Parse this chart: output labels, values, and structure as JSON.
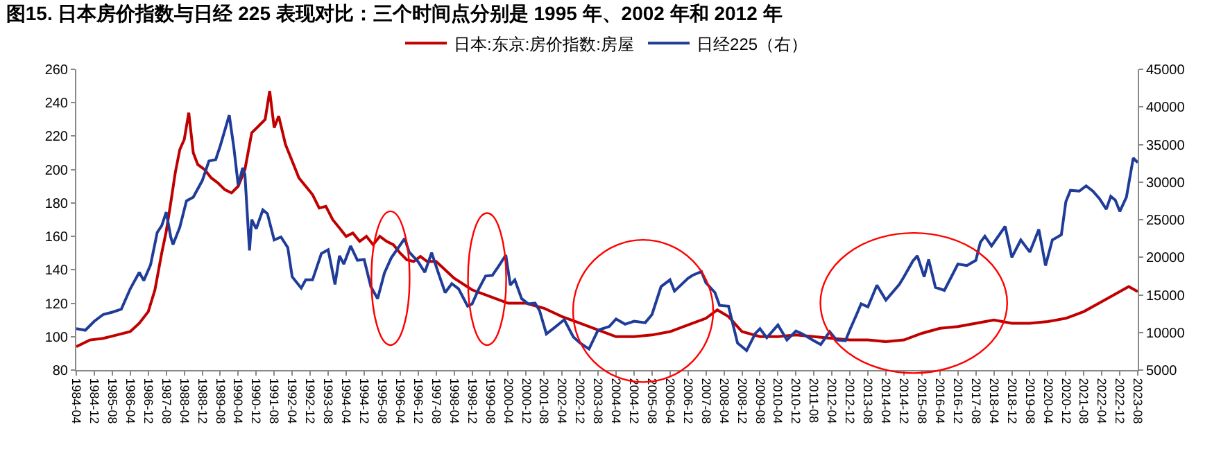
{
  "chart_data": {
    "type": "line",
    "title": "图15. 日本房价指数与日经 225 表现对比：三个时间点分别是 1995 年、2002 年和 2012 年",
    "series": [
      {
        "name": "日本:东京:房价指数:房屋",
        "color": "#c00000",
        "x": [
          "1984-04",
          "1984-10",
          "1985-04",
          "1985-10",
          "1986-04",
          "1986-08",
          "1986-12",
          "1987-03",
          "1987-06",
          "1987-08",
          "1987-10",
          "1987-12",
          "1988-02",
          "1988-04",
          "1988-06",
          "1988-08",
          "1988-10",
          "1989-01",
          "1989-04",
          "1989-07",
          "1989-10",
          "1990-01",
          "1990-04",
          "1990-07",
          "1990-10",
          "1991-01",
          "1991-04",
          "1991-06",
          "1991-08",
          "1991-10",
          "1992-01",
          "1992-04",
          "1992-07",
          "1992-10",
          "1993-01",
          "1993-04",
          "1993-07",
          "1993-10",
          "1994-01",
          "1994-04",
          "1994-07",
          "1994-10",
          "1995-01",
          "1995-04",
          "1995-07",
          "1995-10",
          "1996-01",
          "1996-04",
          "1996-07",
          "1996-10",
          "1997-01",
          "1997-04",
          "1997-08",
          "1998-04",
          "1998-12",
          "1999-08",
          "2000-04",
          "2000-12",
          "2001-08",
          "2002-04",
          "2002-12",
          "2003-08",
          "2004-04",
          "2004-12",
          "2005-08",
          "2006-04",
          "2006-12",
          "2007-08",
          "2008-01",
          "2008-06",
          "2008-12",
          "2009-08",
          "2010-04",
          "2010-12",
          "2011-08",
          "2012-04",
          "2012-12",
          "2013-08",
          "2014-04",
          "2014-12",
          "2015-08",
          "2016-04",
          "2016-12",
          "2017-08",
          "2018-04",
          "2018-12",
          "2019-08",
          "2020-04",
          "2020-12",
          "2021-08",
          "2022-04",
          "2022-12",
          "2023-04",
          "2023-08"
        ],
        "values": [
          94,
          98,
          99,
          101,
          103,
          108,
          115,
          128,
          150,
          163,
          180,
          198,
          212,
          218,
          234,
          210,
          203,
          200,
          195,
          192,
          188,
          186,
          190,
          200,
          222,
          226,
          230,
          247,
          225,
          232,
          215,
          205,
          195,
          190,
          185,
          177,
          178,
          170,
          165,
          160,
          162,
          157,
          160,
          155,
          160,
          157,
          155,
          150,
          146,
          145,
          148,
          145,
          145,
          135,
          128,
          124,
          120,
          120,
          117,
          112,
          108,
          104,
          100,
          100,
          101,
          103,
          107,
          111,
          116,
          112,
          103,
          100,
          100,
          101,
          100,
          99,
          98,
          98,
          97,
          98,
          102,
          105,
          106,
          108,
          110,
          108,
          108,
          109,
          111,
          115,
          121,
          127,
          130,
          127
        ]
      },
      {
        "name": "日经225（右）",
        "color": "#1f3c99",
        "axis": "y2",
        "x": [
          "1984-04",
          "1984-08",
          "1984-12",
          "1985-04",
          "1985-08",
          "1985-12",
          "1986-04",
          "1986-08",
          "1986-10",
          "1987-01",
          "1987-04",
          "1987-06",
          "1987-08",
          "1987-10",
          "1987-11",
          "1988-02",
          "1988-05",
          "1988-08",
          "1988-12",
          "1989-03",
          "1989-06",
          "1989-08",
          "1989-12",
          "1990-02",
          "1990-04",
          "1990-06",
          "1990-07",
          "1990-09",
          "1990-10",
          "1990-12",
          "1991-03",
          "1991-05",
          "1991-08",
          "1991-11",
          "1992-02",
          "1992-04",
          "1992-08",
          "1992-10",
          "1993-01",
          "1993-05",
          "1993-08",
          "1993-11",
          "1994-01",
          "1994-03",
          "1994-06",
          "1994-09",
          "1994-12",
          "1995-03",
          "1995-06",
          "1995-09",
          "1995-12",
          "1996-06",
          "1996-08",
          "1996-12",
          "1997-03",
          "1997-06",
          "1997-09",
          "1997-12",
          "1998-03",
          "1998-06",
          "1998-10",
          "1998-12",
          "1999-03",
          "1999-06",
          "1999-09",
          "1999-12",
          "2000-03",
          "2000-05",
          "2000-07",
          "2000-10",
          "2001-01",
          "2001-04",
          "2001-06",
          "2001-09",
          "2001-12",
          "2002-05",
          "2002-09",
          "2002-12",
          "2003-04",
          "2003-08",
          "2004-01",
          "2004-04",
          "2004-08",
          "2004-12",
          "2005-05",
          "2005-08",
          "2005-12",
          "2006-04",
          "2006-06",
          "2006-12",
          "2007-02",
          "2007-06",
          "2007-08",
          "2007-12",
          "2008-02",
          "2008-06",
          "2008-10",
          "2009-02",
          "2009-06",
          "2009-08",
          "2009-11",
          "2010-04",
          "2010-08",
          "2010-12",
          "2011-03",
          "2011-08",
          "2011-11",
          "2012-03",
          "2012-06",
          "2012-10",
          "2012-12",
          "2013-03",
          "2013-05",
          "2013-08",
          "2013-12",
          "2014-04",
          "2014-10",
          "2014-12",
          "2015-04",
          "2015-06",
          "2015-09",
          "2015-11",
          "2016-02",
          "2016-06",
          "2016-12",
          "2017-04",
          "2017-08",
          "2017-10",
          "2017-12",
          "2018-03",
          "2018-09",
          "2018-12",
          "2019-04",
          "2019-08",
          "2019-12",
          "2020-03",
          "2020-06",
          "2020-10",
          "2020-12",
          "2021-02",
          "2021-06",
          "2021-09",
          "2021-12",
          "2022-03",
          "2022-06",
          "2022-08",
          "2022-10",
          "2022-12",
          "2023-03",
          "2023-06",
          "2023-08"
        ],
        "values": [
          10500,
          10300,
          11500,
          12400,
          12700,
          13100,
          15800,
          18000,
          16900,
          19000,
          23300,
          24200,
          26000,
          22700,
          21700,
          24000,
          27500,
          28000,
          30200,
          32800,
          33000,
          34800,
          38900,
          34600,
          29600,
          31900,
          31000,
          20900,
          25000,
          23800,
          26300,
          25800,
          22300,
          22700,
          21300,
          17400,
          15900,
          17000,
          17000,
          20500,
          21000,
          16400,
          20200,
          19100,
          21500,
          19600,
          19700,
          16100,
          14500,
          17900,
          19900,
          22500,
          20700,
          19400,
          18000,
          20600,
          17900,
          15300,
          16500,
          15800,
          13500,
          13800,
          15800,
          17500,
          17600,
          18900,
          20300,
          16300,
          17000,
          14500,
          13800,
          13900,
          12900,
          9800,
          10500,
          11700,
          9400,
          8600,
          7800,
          10300,
          10800,
          11800,
          11100,
          11500,
          11300,
          12400,
          16100,
          17000,
          15500,
          17200,
          17600,
          18100,
          16600,
          15300,
          13600,
          13500,
          8600,
          7600,
          9900,
          10500,
          9300,
          11000,
          9000,
          10200,
          9800,
          8900,
          8400,
          10100,
          9000,
          8900,
          10400,
          12400,
          13800,
          13400,
          16300,
          14300,
          16400,
          17400,
          19500,
          20200,
          17400,
          19700,
          16000,
          15600,
          19100,
          18900,
          19600,
          22000,
          22800,
          21500,
          24100,
          20000,
          22300,
          20700,
          23700,
          18900,
          22300,
          23000,
          27400,
          28900,
          28800,
          29500,
          28800,
          27800,
          26400,
          28100,
          27600,
          26100,
          28000,
          33200,
          32600
        ]
      }
    ],
    "xlim": [
      "1984-04",
      "2023-08"
    ],
    "xticks": [
      "1984-04",
      "1984-12",
      "1985-08",
      "1986-04",
      "1986-12",
      "1987-08",
      "1988-04",
      "1988-12",
      "1989-08",
      "1990-04",
      "1990-12",
      "1991-08",
      "1992-04",
      "1992-12",
      "1993-08",
      "1994-04",
      "1994-12",
      "1995-08",
      "1996-04",
      "1996-12",
      "1997-08",
      "1998-04",
      "1998-12",
      "1999-08",
      "2000-04",
      "2000-12",
      "2001-08",
      "2002-04",
      "2002-12",
      "2003-08",
      "2004-04",
      "2004-12",
      "2005-08",
      "2006-04",
      "2006-12",
      "2007-08",
      "2008-04",
      "2008-12",
      "2009-08",
      "2010-04",
      "2010-12",
      "2011-08",
      "2012-04",
      "2012-12",
      "2013-08",
      "2014-04",
      "2014-12",
      "2015-08",
      "2016-04",
      "2016-12",
      "2017-08",
      "2018-04",
      "2018-12",
      "2019-08",
      "2020-04",
      "2020-12",
      "2021-08",
      "2022-04",
      "2022-12",
      "2023-08"
    ],
    "ylim": [
      80,
      260
    ],
    "yticks": [
      80,
      100,
      120,
      140,
      160,
      180,
      200,
      220,
      240,
      260
    ],
    "y2lim": [
      5000,
      45000
    ],
    "y2ticks": [
      5000,
      10000,
      15000,
      20000,
      25000,
      30000,
      35000,
      40000,
      45000
    ],
    "legend": "top",
    "marker": "none",
    "line_style": "solid"
  }
}
